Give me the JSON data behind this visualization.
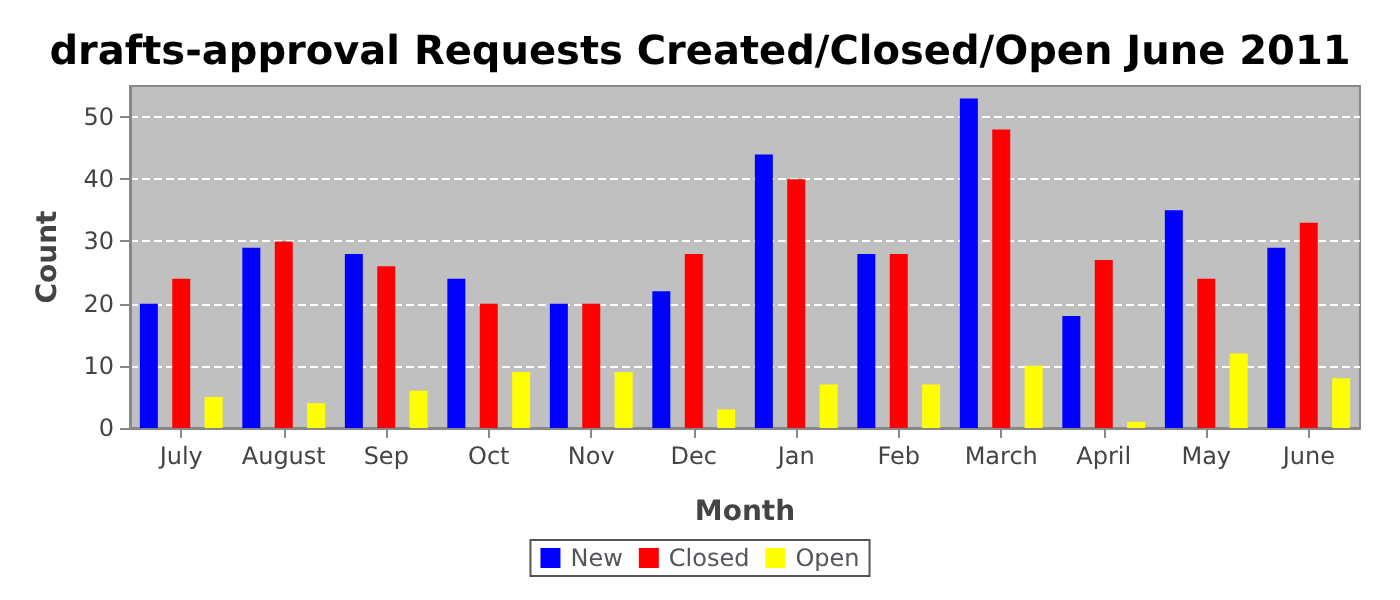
{
  "chart_data": {
    "type": "bar",
    "title": "drafts-approval Requests Created/Closed/Open June 2011",
    "xlabel": "Month",
    "ylabel": "Count",
    "categories": [
      "July",
      "August",
      "Sep",
      "Oct",
      "Nov",
      "Dec",
      "Jan",
      "Feb",
      "March",
      "April",
      "May",
      "June"
    ],
    "series": [
      {
        "name": "New",
        "color": "#0000ff",
        "values": [
          20,
          29,
          28,
          24,
          20,
          22,
          44,
          28,
          53,
          18,
          35,
          29
        ]
      },
      {
        "name": "Closed",
        "color": "#ff0000",
        "values": [
          24,
          30,
          26,
          20,
          20,
          28,
          40,
          28,
          48,
          27,
          24,
          33
        ]
      },
      {
        "name": "Open",
        "color": "#ffff00",
        "values": [
          5,
          4,
          6,
          9,
          9,
          3,
          7,
          7,
          10,
          1,
          12,
          8
        ]
      }
    ],
    "ylim": [
      0,
      55
    ],
    "yticks": [
      0,
      10,
      20,
      30,
      40,
      50
    ],
    "grid": "y",
    "legend": "bottom"
  }
}
